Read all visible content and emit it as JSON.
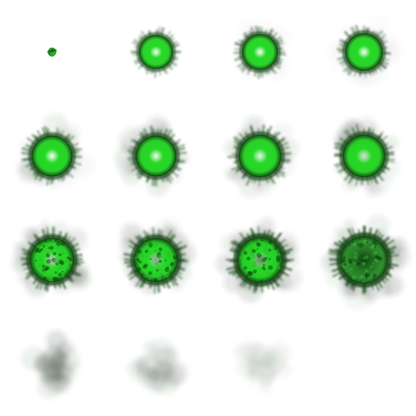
{
  "sprite_sheet": {
    "columns": 4,
    "rows": 4,
    "background": "#ffffff",
    "colors": {
      "glow": "#3ddc3d",
      "core": "#ffffff",
      "bright_green": "#22e022",
      "dark_green": "#0a3d0a",
      "smoke": "#2a3a2a"
    },
    "frames": [
      {
        "index": 0,
        "stage": "spark",
        "size": 0.08,
        "brightness": 0.0,
        "darkness": 0.7,
        "smoke": 0.0,
        "visible": true
      },
      {
        "index": 1,
        "stage": "glow",
        "size": 0.4,
        "brightness": 1.0,
        "darkness": 0.25,
        "smoke": 0.0,
        "visible": true
      },
      {
        "index": 2,
        "stage": "glow",
        "size": 0.42,
        "brightness": 1.0,
        "darkness": 0.35,
        "smoke": 0.05,
        "visible": true
      },
      {
        "index": 3,
        "stage": "glow",
        "size": 0.44,
        "brightness": 1.0,
        "darkness": 0.35,
        "smoke": 0.1,
        "visible": true
      },
      {
        "index": 4,
        "stage": "glow",
        "size": 0.48,
        "brightness": 1.0,
        "darkness": 0.45,
        "smoke": 0.25,
        "visible": true
      },
      {
        "index": 5,
        "stage": "glow",
        "size": 0.48,
        "brightness": 0.95,
        "darkness": 0.45,
        "smoke": 0.3,
        "visible": true
      },
      {
        "index": 6,
        "stage": "glow",
        "size": 0.5,
        "brightness": 0.9,
        "darkness": 0.45,
        "smoke": 0.35,
        "visible": true
      },
      {
        "index": 7,
        "stage": "glow",
        "size": 0.5,
        "brightness": 0.75,
        "darkness": 0.5,
        "smoke": 0.4,
        "visible": true
      },
      {
        "index": 8,
        "stage": "fading",
        "size": 0.52,
        "brightness": 0.55,
        "darkness": 0.6,
        "smoke": 0.5,
        "visible": true
      },
      {
        "index": 9,
        "stage": "fading",
        "size": 0.52,
        "brightness": 0.35,
        "darkness": 0.65,
        "smoke": 0.55,
        "visible": true
      },
      {
        "index": 10,
        "stage": "fading",
        "size": 0.54,
        "brightness": 0.15,
        "darkness": 0.75,
        "smoke": 0.6,
        "visible": true
      },
      {
        "index": 11,
        "stage": "fading",
        "size": 0.56,
        "brightness": 0.0,
        "darkness": 0.8,
        "smoke": 0.6,
        "visible": true
      },
      {
        "index": 12,
        "stage": "smoke",
        "size": 0.58,
        "brightness": 0.0,
        "darkness": 0.0,
        "smoke": 0.55,
        "visible": true
      },
      {
        "index": 13,
        "stage": "smoke",
        "size": 0.6,
        "brightness": 0.0,
        "darkness": 0.0,
        "smoke": 0.35,
        "visible": true
      },
      {
        "index": 14,
        "stage": "smoke",
        "size": 0.6,
        "brightness": 0.0,
        "darkness": 0.0,
        "smoke": 0.18,
        "visible": true
      },
      {
        "index": 15,
        "stage": "empty",
        "size": 0.0,
        "brightness": 0.0,
        "darkness": 0.0,
        "smoke": 0.0,
        "visible": false
      }
    ]
  }
}
